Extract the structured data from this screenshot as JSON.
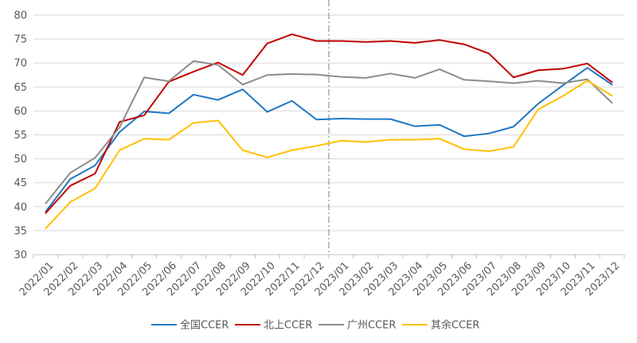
{
  "chart_data": {
    "type": "line",
    "title": "",
    "xlabel": "",
    "ylabel": "",
    "ylim": [
      30,
      80
    ],
    "yticks": [
      30,
      35,
      40,
      45,
      50,
      55,
      60,
      65,
      70,
      75,
      80
    ],
    "grid": "horizontal",
    "legend_position": "bottom",
    "divider_after": "2022/12",
    "categories": [
      "2022/01",
      "2022/02",
      "2022/03",
      "2022/04",
      "2022/05",
      "2022/06",
      "2022/07",
      "2022/08",
      "2022/09",
      "2022/10",
      "2022/11",
      "2022/12",
      "2023/01",
      "2023/02",
      "2023/03",
      "2023/04",
      "2023/05",
      "2023/06",
      "2023/07",
      "2023/08",
      "2023/09",
      "2023/10",
      "2023/11",
      "2023/12"
    ],
    "series": [
      {
        "name": "全国CCER",
        "color": "#1f77c4",
        "values": [
          39.0,
          45.8,
          48.6,
          55.6,
          59.9,
          59.5,
          63.4,
          62.3,
          64.5,
          59.8,
          62.1,
          58.2,
          58.4,
          58.3,
          58.3,
          56.8,
          57.1,
          54.7,
          55.3,
          56.7,
          61.5,
          65.3,
          69.0,
          65.5
        ]
      },
      {
        "name": "北上CCER",
        "color": "#c00000",
        "values": [
          38.7,
          44.4,
          46.9,
          57.7,
          59.1,
          66.1,
          68.2,
          70.1,
          67.5,
          74.1,
          76.0,
          74.6,
          74.6,
          74.4,
          74.6,
          74.2,
          74.8,
          73.9,
          72.0,
          67.0,
          68.5,
          68.8,
          69.9,
          66.0
        ]
      },
      {
        "name": "广州CCER",
        "color": "#8c8c8c",
        "values": [
          40.7,
          47.1,
          50.2,
          56.6,
          67.0,
          66.2,
          70.4,
          69.6,
          65.5,
          67.5,
          67.7,
          67.6,
          67.1,
          66.9,
          67.8,
          66.9,
          68.7,
          66.5,
          66.2,
          65.8,
          66.3,
          65.8,
          66.6,
          61.7
        ]
      },
      {
        "name": "其余CCER",
        "color": "#ffc000",
        "values": [
          35.5,
          41.0,
          43.8,
          51.8,
          54.2,
          54.0,
          57.5,
          58.0,
          51.8,
          50.3,
          51.8,
          52.7,
          53.8,
          53.5,
          54.0,
          54.0,
          54.2,
          52.0,
          51.6,
          52.5,
          60.3,
          63.1,
          66.3,
          63.2
        ]
      }
    ]
  }
}
